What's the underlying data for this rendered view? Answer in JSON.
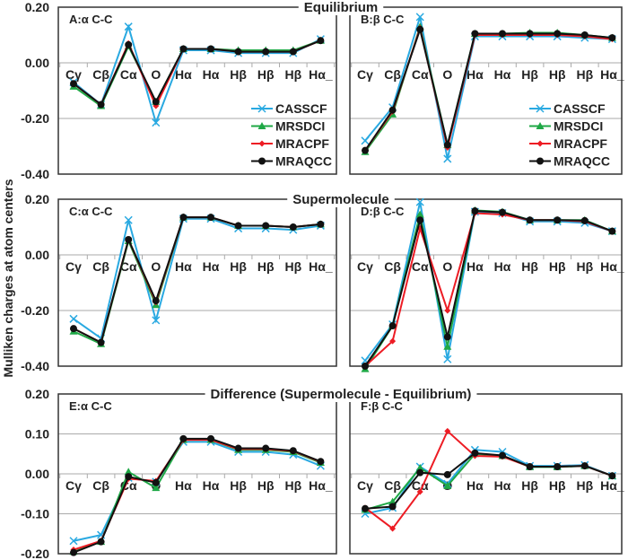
{
  "chart_data": {
    "type": "line",
    "ylabel": "Mulliken charges at atom centers",
    "categories": [
      "Cγ",
      "Cβ",
      "Cα",
      "O",
      "Hα",
      "Hα",
      "Hβ",
      "Hβ",
      "Hβ",
      "Hα_"
    ],
    "series_names": [
      "CASSCF",
      "MRSDCI",
      "MRACPF",
      "MRAQCC"
    ],
    "colors": {
      "CASSCF": "#29a9e1",
      "MRSDCI": "#1fa846",
      "MRACPF": "#ed1c24",
      "MRAQCC": "#111111"
    },
    "markers": {
      "CASSCF": "x",
      "MRSDCI": "triangle",
      "MRACPF": "diamond",
      "MRAQCC": "circle"
    },
    "sections": [
      {
        "title": "Equilibrium",
        "ylim": [
          -0.4,
          0.2
        ],
        "yticks": [
          "0.20",
          "0.00",
          "-0.20",
          "-0.40"
        ]
      },
      {
        "title": "Supermolecule",
        "ylim": [
          -0.4,
          0.2
        ],
        "yticks": [
          "0.20",
          "0.00",
          "-0.20",
          "-0.40"
        ]
      },
      {
        "title": "Difference (Supermolecule -  Equilibrium)",
        "ylim": [
          -0.2,
          0.2
        ],
        "yticks": [
          "0.20",
          "0.10",
          "0.00",
          "-0.10",
          "-0.20"
        ]
      }
    ],
    "panels": [
      {
        "title": "A:α C-C",
        "section": 0,
        "legend": "right",
        "grid": true,
        "series": [
          {
            "name": "CASSCF",
            "values": [
              -0.07,
              -0.15,
              0.13,
              -0.215,
              0.045,
              0.045,
              0.035,
              0.035,
              0.035,
              0.085
            ]
          },
          {
            "name": "MRSDCI",
            "values": [
              -0.085,
              -0.155,
              0.06,
              -0.14,
              0.05,
              0.05,
              0.045,
              0.045,
              0.045,
              0.08
            ]
          },
          {
            "name": "MRACPF",
            "values": [
              -0.075,
              -0.15,
              0.07,
              -0.155,
              0.05,
              0.05,
              0.04,
              0.04,
              0.04,
              0.08
            ]
          },
          {
            "name": "MRAQCC",
            "values": [
              -0.075,
              -0.15,
              0.065,
              -0.14,
              0.05,
              0.05,
              0.04,
              0.04,
              0.04,
              0.08
            ]
          }
        ]
      },
      {
        "title": "B:β C-C",
        "section": 0,
        "legend": "right",
        "grid": true,
        "series": [
          {
            "name": "CASSCF",
            "values": [
              -0.28,
              -0.16,
              0.165,
              -0.345,
              0.095,
              0.095,
              0.095,
              0.095,
              0.09,
              0.085
            ]
          },
          {
            "name": "MRSDCI",
            "values": [
              -0.32,
              -0.185,
              0.13,
              -0.295,
              0.105,
              0.105,
              0.108,
              0.108,
              0.1,
              0.09
            ]
          },
          {
            "name": "MRACPF",
            "values": [
              -0.315,
              -0.175,
              0.125,
              -0.305,
              0.1,
              0.1,
              0.1,
              0.1,
              0.095,
              0.085
            ]
          },
          {
            "name": "MRAQCC",
            "values": [
              -0.315,
              -0.17,
              0.12,
              -0.295,
              0.105,
              0.105,
              0.105,
              0.105,
              0.1,
              0.09
            ]
          }
        ]
      },
      {
        "title": "C:α C-C",
        "section": 1,
        "grid": true,
        "series": [
          {
            "name": "CASSCF",
            "values": [
              -0.23,
              -0.3,
              0.125,
              -0.235,
              0.13,
              0.13,
              0.095,
              0.095,
              0.09,
              0.105
            ]
          },
          {
            "name": "MRSDCI",
            "values": [
              -0.275,
              -0.32,
              0.05,
              -0.18,
              0.135,
              0.135,
              0.105,
              0.105,
              0.1,
              0.11
            ]
          },
          {
            "name": "MRACPF",
            "values": [
              -0.265,
              -0.315,
              0.055,
              -0.17,
              0.135,
              0.135,
              0.105,
              0.105,
              0.1,
              0.11
            ]
          },
          {
            "name": "MRAQCC",
            "values": [
              -0.265,
              -0.315,
              0.055,
              -0.165,
              0.135,
              0.135,
              0.105,
              0.105,
              0.1,
              0.11
            ]
          }
        ]
      },
      {
        "title": "D:β C-C",
        "section": 1,
        "grid": true,
        "series": [
          {
            "name": "CASSCF",
            "values": [
              -0.38,
              -0.25,
              0.19,
              -0.375,
              0.155,
              0.15,
              0.12,
              0.12,
              0.115,
              0.085
            ]
          },
          {
            "name": "MRSDCI",
            "values": [
              -0.41,
              -0.255,
              0.145,
              -0.33,
              0.16,
              0.155,
              0.125,
              0.125,
              0.125,
              0.085
            ]
          },
          {
            "name": "MRACPF",
            "values": [
              -0.4,
              -0.31,
              0.095,
              -0.2,
              0.15,
              0.145,
              0.125,
              0.125,
              0.12,
              0.085
            ]
          },
          {
            "name": "MRAQCC",
            "values": [
              -0.4,
              -0.255,
              0.125,
              -0.295,
              0.158,
              0.153,
              0.125,
              0.125,
              0.123,
              0.085
            ]
          }
        ]
      },
      {
        "title": "E:α C-C",
        "section": 2,
        "grid": true,
        "series": [
          {
            "name": "CASSCF",
            "values": [
              -0.168,
              -0.153,
              -0.01,
              -0.02,
              0.08,
              0.08,
              0.055,
              0.055,
              0.048,
              0.02
            ]
          },
          {
            "name": "MRSDCI",
            "values": [
              -0.195,
              -0.17,
              0.005,
              -0.035,
              0.085,
              0.085,
              0.06,
              0.06,
              0.055,
              0.028
            ]
          },
          {
            "name": "MRACPF",
            "values": [
              -0.19,
              -0.168,
              -0.012,
              -0.018,
              0.085,
              0.085,
              0.062,
              0.062,
              0.057,
              0.03
            ]
          },
          {
            "name": "MRAQCC",
            "values": [
              -0.197,
              -0.17,
              -0.007,
              -0.022,
              0.088,
              0.088,
              0.064,
              0.064,
              0.058,
              0.031
            ]
          }
        ]
      },
      {
        "title": "F:β C-C",
        "section": 2,
        "grid": true,
        "series": [
          {
            "name": "CASSCF",
            "values": [
              -0.1,
              -0.085,
              0.018,
              -0.025,
              0.06,
              0.055,
              0.02,
              0.02,
              0.022,
              -0.005
            ]
          },
          {
            "name": "MRSDCI",
            "values": [
              -0.09,
              -0.07,
              0.015,
              -0.03,
              0.05,
              0.045,
              0.017,
              0.017,
              0.02,
              -0.005
            ]
          },
          {
            "name": "MRACPF",
            "values": [
              -0.085,
              -0.137,
              -0.045,
              0.107,
              0.045,
              0.043,
              0.018,
              0.018,
              0.02,
              -0.005
            ]
          },
          {
            "name": "MRAQCC",
            "values": [
              -0.087,
              -0.082,
              0.003,
              -0.002,
              0.052,
              0.046,
              0.018,
              0.018,
              0.02,
              -0.005
            ]
          }
        ]
      }
    ]
  }
}
